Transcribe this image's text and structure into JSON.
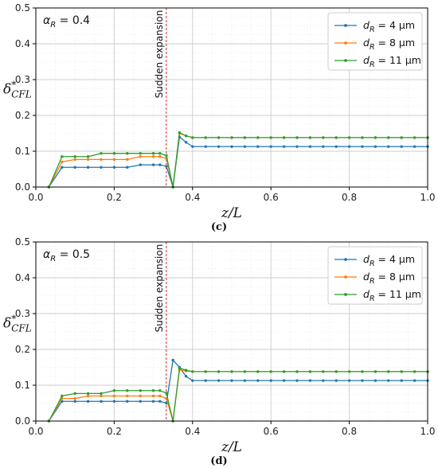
{
  "colors": {
    "series_blue": "#1f77b4",
    "series_orange": "#ff7f0e",
    "series_green": "#2ca02c",
    "vline_red": "#d62728",
    "grid": "#cccccc"
  },
  "chart_data": [
    {
      "type": "line",
      "panel_caption": "(c)",
      "annotation_label": "α_R = 0.4",
      "vertical_line_x": 0.333,
      "vertical_line_label": "Sudden expansion",
      "xlabel": "z/L",
      "ylabel": "δ*_CFL",
      "xlim": [
        0.0,
        1.0
      ],
      "ylim": [
        0.0,
        0.5
      ],
      "xticks": [
        "0.0",
        "0.2",
        "0.4",
        "0.6",
        "0.8",
        "1.0"
      ],
      "yticks": [
        "0.0",
        "0.1",
        "0.2",
        "0.3",
        "0.4",
        "0.5"
      ],
      "grid": true,
      "legend_position": "top-right",
      "x": [
        0.0333,
        0.0667,
        0.1,
        0.1333,
        0.1667,
        0.2,
        0.2333,
        0.2667,
        0.3,
        0.3167,
        0.3333,
        0.35,
        0.3667,
        0.3833,
        0.4,
        0.4333,
        0.4667,
        0.5,
        0.5333,
        0.5667,
        0.6,
        0.6333,
        0.6667,
        0.7,
        0.7333,
        0.7667,
        0.8,
        0.8333,
        0.8667,
        0.9,
        0.9333,
        0.9667,
        1.0
      ],
      "series": [
        {
          "name": "d_R = 4 μm",
          "color_key": "series_blue",
          "values": [
            0.0,
            0.055,
            0.055,
            0.055,
            0.055,
            0.055,
            0.055,
            0.062,
            0.062,
            0.062,
            0.058,
            0.0,
            0.14,
            0.125,
            0.113,
            0.113,
            0.113,
            0.113,
            0.113,
            0.113,
            0.113,
            0.113,
            0.113,
            0.113,
            0.113,
            0.113,
            0.113,
            0.113,
            0.113,
            0.113,
            0.113,
            0.113,
            0.113
          ]
        },
        {
          "name": "d_R = 8 μm",
          "color_key": "series_orange",
          "values": [
            0.0,
            0.07,
            0.077,
            0.077,
            0.077,
            0.077,
            0.077,
            0.085,
            0.085,
            0.085,
            0.08,
            0.0,
            0.15,
            0.143,
            0.138,
            0.138,
            0.138,
            0.138,
            0.138,
            0.138,
            0.138,
            0.138,
            0.138,
            0.138,
            0.138,
            0.138,
            0.138,
            0.138,
            0.138,
            0.138,
            0.138,
            0.138,
            0.138
          ]
        },
        {
          "name": "d_R = 11 μm",
          "color_key": "series_green",
          "values": [
            0.0,
            0.085,
            0.085,
            0.085,
            0.094,
            0.094,
            0.094,
            0.094,
            0.094,
            0.094,
            0.088,
            0.0,
            0.152,
            0.143,
            0.138,
            0.138,
            0.138,
            0.138,
            0.138,
            0.138,
            0.138,
            0.138,
            0.138,
            0.138,
            0.138,
            0.138,
            0.138,
            0.138,
            0.138,
            0.138,
            0.138,
            0.138,
            0.138
          ]
        }
      ]
    },
    {
      "type": "line",
      "panel_caption": "(d)",
      "annotation_label": "α_R = 0.5",
      "vertical_line_x": 0.333,
      "vertical_line_label": "Sudden expansion",
      "xlabel": "z/L",
      "ylabel": "δ*_CFL",
      "xlim": [
        0.0,
        1.0
      ],
      "ylim": [
        0.0,
        0.5
      ],
      "xticks": [
        "0.0",
        "0.2",
        "0.4",
        "0.6",
        "0.8",
        "1.0"
      ],
      "yticks": [
        "0.0",
        "0.1",
        "0.2",
        "0.3",
        "0.4",
        "0.5"
      ],
      "grid": true,
      "legend_position": "top-right",
      "x": [
        0.0333,
        0.0667,
        0.1,
        0.1333,
        0.1667,
        0.2,
        0.2333,
        0.2667,
        0.3,
        0.3167,
        0.3333,
        0.35,
        0.3667,
        0.3833,
        0.4,
        0.4333,
        0.4667,
        0.5,
        0.5333,
        0.5667,
        0.6,
        0.6333,
        0.6667,
        0.7,
        0.7333,
        0.7667,
        0.8,
        0.8333,
        0.8667,
        0.9,
        0.9333,
        0.9667,
        1.0
      ],
      "series": [
        {
          "name": "d_R = 4 μm",
          "color_key": "series_blue",
          "values": [
            0.0,
            0.055,
            0.055,
            0.055,
            0.055,
            0.055,
            0.055,
            0.055,
            0.055,
            0.055,
            0.05,
            0.17,
            0.15,
            0.125,
            0.113,
            0.113,
            0.113,
            0.113,
            0.113,
            0.113,
            0.113,
            0.113,
            0.113,
            0.113,
            0.113,
            0.113,
            0.113,
            0.113,
            0.113,
            0.113,
            0.113,
            0.113,
            0.113
          ]
        },
        {
          "name": "d_R = 8 μm",
          "color_key": "series_orange",
          "values": [
            0.0,
            0.063,
            0.063,
            0.07,
            0.07,
            0.07,
            0.07,
            0.07,
            0.07,
            0.07,
            0.063,
            0.0,
            0.143,
            0.14,
            0.138,
            0.138,
            0.138,
            0.138,
            0.138,
            0.138,
            0.138,
            0.138,
            0.138,
            0.138,
            0.138,
            0.138,
            0.138,
            0.138,
            0.138,
            0.138,
            0.138,
            0.138,
            0.138
          ]
        },
        {
          "name": "d_R = 11 μm",
          "color_key": "series_green",
          "values": [
            0.0,
            0.07,
            0.077,
            0.077,
            0.077,
            0.085,
            0.085,
            0.085,
            0.085,
            0.085,
            0.078,
            0.0,
            0.148,
            0.142,
            0.138,
            0.138,
            0.138,
            0.138,
            0.138,
            0.138,
            0.138,
            0.138,
            0.138,
            0.138,
            0.138,
            0.138,
            0.138,
            0.138,
            0.138,
            0.138,
            0.138,
            0.138,
            0.138
          ]
        }
      ]
    }
  ]
}
